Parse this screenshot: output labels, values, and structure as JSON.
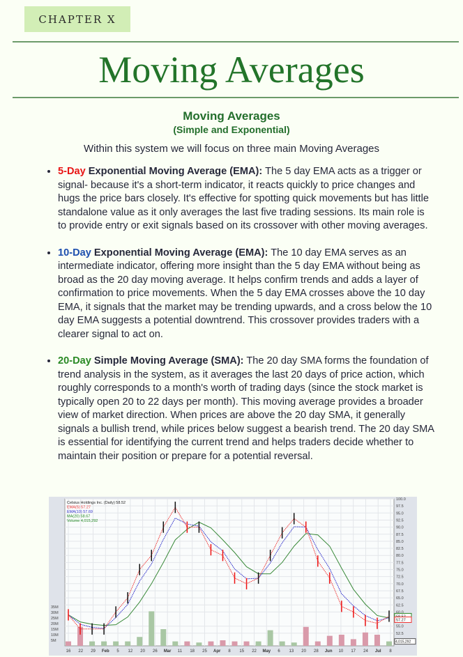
{
  "chapter_label": "CHAPTER X",
  "title": "Moving Averages",
  "subtitle": "Moving Averages",
  "subtitle2": "(Simple and Exponential)",
  "intro": "Within this system we will focus on three main Moving Averages",
  "bullets": [
    {
      "key": "5-Day",
      "head": " Exponential Moving Average (EMA):",
      "text": " The 5 day EMA acts as a trigger or signal- because it's a short-term indicator, it reacts quickly to price changes and hugs the price bars closely. It's effective for spotting quick movements but has little standalone value as it only averages the last five trading sessions. Its main role is to provide entry or exit signals based on its crossover with other moving averages."
    },
    {
      "key": "10-Day",
      "head": " Exponential Moving Average (EMA):",
      "text": " The 10 day EMA serves as an intermediate indicator, offering more insight than the 5 day EMA without being as broad as the 20 day moving average. It helps confirm trends and adds a layer of confirmation to price movements. When the 5 day EMA crosses above the 10 day EMA, it signals that the market may be trending upwards, and a cross below the 10 day EMA suggests a potential downtrend. This crossover provides traders with a clearer signal to act on."
    },
    {
      "key": "20-Day",
      "head": " Simple Moving Average (SMA):",
      "text": " The 20 day SMA forms the foundation of trend analysis in the system, as it averages the last 20 days of price action, which roughly corresponds to a month's worth of trading days (since the stock market is typically open 20 to 22 days per month). This moving average provides a broader view of market direction. When prices are above the 20 day SMA, it generally signals a bullish trend, while prices below suggest a bearish trend. The 20 day SMA is essential for identifying the current trend and helps traders decide whether to maintain their position or prepare for a potential reversal."
    }
  ],
  "colors": {
    "key5": "#e81515",
    "key10": "#1d4fae",
    "key20": "#2a8a25",
    "accent": "#23742a"
  },
  "chart_data": {
    "type": "line",
    "legend": {
      "title": "Celsius Holdings Inc. (Daily) 58.52",
      "ema5": "EMA(5) 57.27",
      "ema10": "EMA(10) 57.69",
      "ma20": "MA(20) 58.67",
      "volume": "Volume 4,015,292"
    },
    "x": [
      "Jan 16",
      "Jan 22",
      "Jan 29",
      "Feb 5",
      "Feb 12",
      "Feb 20",
      "Feb 26",
      "Mar 1",
      "Mar 8",
      "Mar 11",
      "Mar 18",
      "Mar 25",
      "Apr 1",
      "Apr 8",
      "Apr 15",
      "Apr 22",
      "May 1",
      "May 6",
      "May 13",
      "May 20",
      "May 28",
      "Jun 3",
      "Jun 10",
      "Jun 17",
      "Jun 24",
      "Jul 1",
      "Jul 8",
      "Jul 10"
    ],
    "close": [
      59,
      54,
      54,
      54,
      60,
      65,
      75,
      80,
      90,
      97,
      90,
      90,
      82,
      80,
      72,
      70,
      72,
      80,
      88,
      93,
      90,
      78,
      72,
      62,
      60,
      57,
      56,
      58.52
    ],
    "volume_m": [
      4,
      17,
      4,
      4,
      4,
      4,
      8,
      31,
      15,
      4,
      4,
      3,
      4,
      5,
      4,
      4,
      4,
      14,
      4,
      3,
      17,
      4,
      9,
      10,
      6,
      12,
      10,
      4
    ],
    "x_ticks": [
      "16",
      "22",
      "29",
      "Feb",
      "5",
      "12",
      "20",
      "26",
      "Mar",
      "11",
      "18",
      "25",
      "Apr",
      "8",
      "15",
      "22",
      "May",
      "6",
      "13",
      "20",
      "28",
      "Jun",
      "10",
      "17",
      "24",
      "Jul",
      "8"
    ],
    "y_ticks": [
      "100.0",
      "97.5",
      "95.0",
      "92.5",
      "90.0",
      "87.5",
      "85.0",
      "82.5",
      "80.0",
      "77.5",
      "75.0",
      "72.5",
      "70.0",
      "67.5",
      "65.0",
      "62.5",
      "60.0",
      "55.0",
      "52.5"
    ],
    "vol_ticks": [
      "35M",
      "30M",
      "25M",
      "20M",
      "15M",
      "10M",
      "5M"
    ],
    "last_labels": {
      "close": "58.52",
      "ema5": "57.27",
      "volume": "4,015,292"
    },
    "ylim": [
      50,
      100
    ],
    "grid": true,
    "legend_placement": "top-left"
  }
}
